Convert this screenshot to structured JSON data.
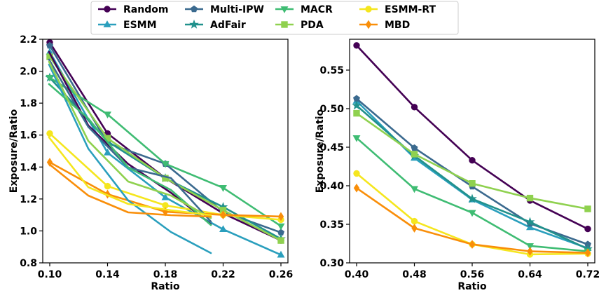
{
  "chart_data": [
    {
      "type": "line",
      "xlabel": "Ratio",
      "ylabel": "Exposure/Ratio",
      "x": [
        0.1,
        0.14,
        0.18,
        0.22,
        0.26
      ],
      "x_tick_labels": [
        "0.10",
        "0.14",
        "0.18",
        "0.22",
        "0.26"
      ],
      "xlim": [
        0.1,
        0.26
      ],
      "ylim": [
        0.8,
        2.2
      ],
      "y_ticks": [
        0.8,
        1.0,
        1.2,
        1.4,
        1.6,
        1.8,
        2.0,
        2.2
      ],
      "y_tick_labels": [
        "0.8",
        "1.0",
        "1.2",
        "1.4",
        "1.6",
        "1.8",
        "2.0",
        "2.2"
      ],
      "series": [
        {
          "name": "Random",
          "color": "#440154",
          "marker": "circle",
          "values": [
            2.18,
            1.61,
            1.33,
            1.11,
            0.94
          ]
        },
        {
          "name": "ESMM",
          "color": "#2a9fbd",
          "marker": "triangle-up",
          "values": [
            2.12,
            1.49,
            1.21,
            1.01,
            0.85
          ]
        },
        {
          "name": "Multi-IPW",
          "color": "#3b6a8f",
          "marker": "pentagon",
          "values": [
            2.16,
            1.55,
            1.42,
            1.12,
            0.99
          ]
        },
        {
          "name": "AdFair",
          "color": "#21918c",
          "marker": "star",
          "values": [
            1.96,
            1.56,
            1.33,
            1.15,
            0.95
          ]
        },
        {
          "name": "MACR",
          "color": "#3fbc73",
          "marker": "triangle-down",
          "values": [
            1.96,
            1.73,
            1.42,
            1.27,
            1.03
          ]
        },
        {
          "name": "PDA",
          "color": "#8fd14f",
          "marker": "square",
          "values": [
            2.09,
            1.58,
            1.33,
            1.13,
            0.94
          ]
        },
        {
          "name": "ESMM-RT",
          "color": "#f5e61e",
          "marker": "circle",
          "values": [
            1.61,
            1.28,
            1.16,
            1.1,
            1.07
          ]
        },
        {
          "name": "MBD",
          "color": "#f98e09",
          "marker": "diamond",
          "values": [
            1.43,
            1.23,
            1.12,
            1.1,
            1.09
          ]
        }
      ]
    },
    {
      "type": "line",
      "xlabel": "Ratio",
      "ylabel": "Exposure/Ratio",
      "x": [
        0.4,
        0.48,
        0.56,
        0.64,
        0.72
      ],
      "x_tick_labels": [
        "0.40",
        "0.48",
        "0.56",
        "0.64",
        "0.72"
      ],
      "xlim": [
        0.4,
        0.72
      ],
      "ylim": [
        0.3,
        0.59
      ],
      "y_ticks": [
        0.3,
        0.35,
        0.4,
        0.45,
        0.5,
        0.55
      ],
      "y_tick_labels": [
        "0.30",
        "0.35",
        "0.40",
        "0.45",
        "0.50",
        "0.55"
      ],
      "series": [
        {
          "name": "Random",
          "color": "#440154",
          "marker": "circle",
          "values": [
            0.582,
            0.502,
            0.433,
            0.381,
            0.344
          ]
        },
        {
          "name": "ESMM",
          "color": "#2a9fbd",
          "marker": "triangle-up",
          "values": [
            0.51,
            0.436,
            0.382,
            0.346,
            0.319
          ]
        },
        {
          "name": "Multi-IPW",
          "color": "#3b6a8f",
          "marker": "pentagon",
          "values": [
            0.513,
            0.449,
            0.399,
            0.351,
            0.324
          ]
        },
        {
          "name": "AdFair",
          "color": "#21918c",
          "marker": "star",
          "values": [
            0.504,
            0.439,
            0.383,
            0.353,
            0.318
          ]
        },
        {
          "name": "MACR",
          "color": "#3fbc73",
          "marker": "triangle-down",
          "values": [
            0.462,
            0.396,
            0.365,
            0.322,
            0.315
          ]
        },
        {
          "name": "PDA",
          "color": "#8fd14f",
          "marker": "square",
          "values": [
            0.494,
            0.441,
            0.403,
            0.384,
            0.37
          ]
        },
        {
          "name": "ESMM-RT",
          "color": "#f5e61e",
          "marker": "circle",
          "values": [
            0.416,
            0.354,
            0.324,
            0.311,
            0.312
          ]
        },
        {
          "name": "MBD",
          "color": "#f98e09",
          "marker": "diamond",
          "values": [
            0.397,
            0.345,
            0.324,
            0.315,
            0.313
          ]
        }
      ]
    }
  ],
  "legend": {
    "placement": "top-center",
    "columns": [
      [
        "Random",
        "ESMM"
      ],
      [
        "Multi-IPW",
        "AdFair"
      ],
      [
        "MACR",
        "PDA"
      ],
      [
        "ESMM-RT",
        "MBD"
      ]
    ]
  }
}
